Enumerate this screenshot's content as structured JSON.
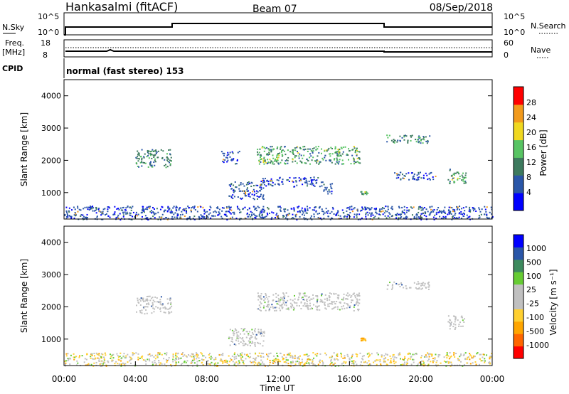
{
  "header": {
    "station": "Hankasalmi (fitACF)",
    "beam": "Beam 07",
    "date": "08/Sep/2018"
  },
  "top_panels": {
    "nsky_label": "N.Sky",
    "nsky_ticks": [
      "10^5",
      "10^0"
    ],
    "nsearch_label": "N.Search",
    "freq_label_line1": "Freq.",
    "freq_label_line2": "[MHz]",
    "freq_ticks": [
      "18",
      "8"
    ],
    "nave_ticks": [
      "60",
      "0"
    ],
    "nave_label": "Nave",
    "cpid_label": "CPID",
    "cpid_text": "normal (fast stereo) 153"
  },
  "power_panel": {
    "ylabel": "Slant Range [km]",
    "yticks": [
      "4000",
      "3000",
      "2000",
      "1000"
    ],
    "colorbar_label": "Power [dB]",
    "colorbar_ticks": [
      "28",
      "24",
      "20",
      "16",
      "12",
      "8",
      "4"
    ],
    "colorbar_colors": [
      "#0000ff",
      "#2a56a8",
      "#3d7a5e",
      "#58c463",
      "#f0d820",
      "#f29a1c",
      "#ff0000"
    ]
  },
  "velocity_panel": {
    "ylabel": "Slant Range [km]",
    "yticks": [
      "4000",
      "3000",
      "2000",
      "1000"
    ],
    "colorbar_label": "Velocity  [m s⁻¹]",
    "colorbar_ticks": [
      "1000",
      "500",
      "100",
      "25",
      "-25",
      "-100",
      "-500",
      "-1000"
    ],
    "colorbar_colors": [
      "#ff0000",
      "#ff6600",
      "#ffa500",
      "#ffd030",
      "#c0c0c0",
      "#c0c0c0",
      "#66cc33",
      "#3d8a5e",
      "#2a56a8",
      "#0000ff"
    ]
  },
  "xaxis": {
    "label": "Time UT",
    "ticks": [
      "00:00",
      "04:00",
      "08:00",
      "12:00",
      "16:00",
      "20:00",
      "00:00"
    ]
  },
  "chart_data": {
    "type": "heatmap",
    "x_unit": "hours UT",
    "x_range": [
      0,
      24
    ],
    "y_range_km": [
      180,
      4500
    ],
    "power_scatter_regions": [
      {
        "t0": 4.0,
        "t1": 6.0,
        "r0": 1800,
        "r1": 2350,
        "level": 12
      },
      {
        "t0": 8.8,
        "t1": 9.8,
        "r0": 1900,
        "r1": 2300,
        "level": 8
      },
      {
        "t0": 10.8,
        "t1": 16.6,
        "r0": 1900,
        "r1": 2450,
        "level": 16
      },
      {
        "t0": 9.2,
        "t1": 11.2,
        "r0": 800,
        "r1": 1350,
        "level": 8
      },
      {
        "t0": 11.0,
        "t1": 14.5,
        "r0": 1200,
        "r1": 1500,
        "level": 8
      },
      {
        "t0": 14.5,
        "t1": 15.0,
        "r0": 900,
        "r1": 1300,
        "level": 8
      },
      {
        "t0": 16.6,
        "t1": 17.0,
        "r0": 950,
        "r1": 1050,
        "level": 16
      },
      {
        "t0": 18.0,
        "t1": 20.5,
        "r0": 2550,
        "r1": 2800,
        "level": 12
      },
      {
        "t0": 18.5,
        "t1": 20.8,
        "r0": 1400,
        "r1": 1650,
        "level": 8
      },
      {
        "t0": 21.5,
        "t1": 22.5,
        "r0": 1300,
        "r1": 1750,
        "level": 16
      },
      {
        "t0": 0.0,
        "t1": 24.0,
        "r0": 180,
        "r1": 600,
        "level": 8
      }
    ],
    "velocity_regions": [
      {
        "t0": 4.0,
        "t1": 6.0,
        "r0": 1800,
        "r1": 2350,
        "value": 0
      },
      {
        "t0": 10.8,
        "t1": 16.6,
        "r0": 1900,
        "r1": 2450,
        "value": 0
      },
      {
        "t0": 9.2,
        "t1": 11.2,
        "r0": 800,
        "r1": 1350,
        "value": 0
      },
      {
        "t0": 16.6,
        "t1": 17.0,
        "r0": 950,
        "r1": 1050,
        "value": -100
      },
      {
        "t0": 18.0,
        "t1": 20.5,
        "r0": 2550,
        "r1": 2800,
        "value": 0
      },
      {
        "t0": 21.5,
        "t1": 22.5,
        "r0": 1300,
        "r1": 1750,
        "value": 0
      },
      {
        "t0": 0.0,
        "t1": 24.0,
        "r0": 180,
        "r1": 600,
        "value": -25
      }
    ]
  }
}
